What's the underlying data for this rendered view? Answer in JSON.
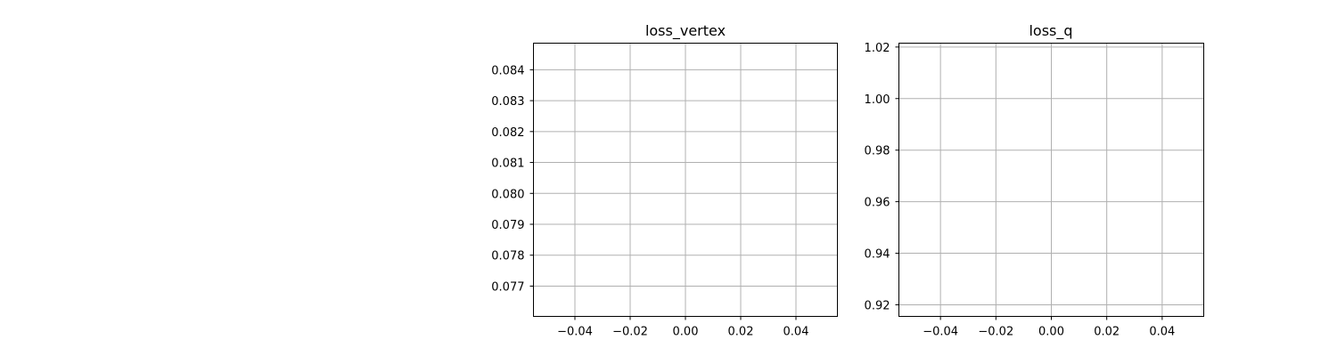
{
  "chart_data": [
    {
      "type": "line",
      "title": "loss_vertex",
      "xlabel": "",
      "ylabel": "",
      "grid": true,
      "xlim": [
        -0.055,
        0.055
      ],
      "ylim": [
        0.07602,
        0.08486
      ],
      "xticks": [
        -0.04,
        -0.02,
        0.0,
        0.02,
        0.04
      ],
      "xtick_labels": [
        "−0.04",
        "−0.02",
        "0.00",
        "0.02",
        "0.04"
      ],
      "yticks": [
        0.077,
        0.078,
        0.079,
        0.08,
        0.081,
        0.082,
        0.083,
        0.084
      ],
      "ytick_labels": [
        "0.077",
        "0.078",
        "0.079",
        "0.080",
        "0.081",
        "0.082",
        "0.083",
        "0.084"
      ],
      "series": []
    },
    {
      "type": "line",
      "title": "loss_q",
      "xlabel": "",
      "ylabel": "",
      "grid": true,
      "xlim": [
        -0.055,
        0.055
      ],
      "ylim": [
        0.9155,
        1.0215
      ],
      "xticks": [
        -0.04,
        -0.02,
        0.0,
        0.02,
        0.04
      ],
      "xtick_labels": [
        "−0.04",
        "−0.02",
        "0.00",
        "0.02",
        "0.04"
      ],
      "yticks": [
        0.92,
        0.94,
        0.96,
        0.98,
        1.0,
        1.02
      ],
      "ytick_labels": [
        "0.92",
        "0.94",
        "0.96",
        "0.98",
        "1.00",
        "1.02"
      ],
      "series": []
    }
  ],
  "colors": {
    "grid": "#b0b0b0",
    "spine": "#000000",
    "text": "#000000",
    "background": "#ffffff"
  }
}
